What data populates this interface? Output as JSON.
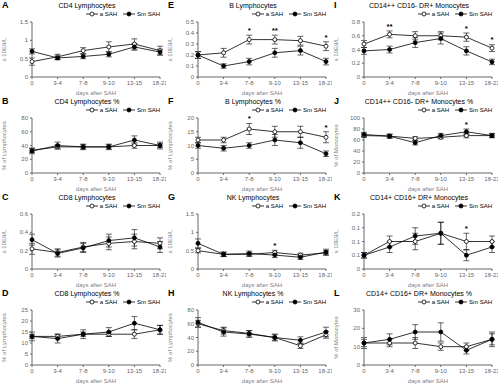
{
  "chart_data": [
    {
      "type": "line",
      "title": "CD4 Lymphocytes",
      "x_label": "days after SAH",
      "y_label": "x 10E9/L",
      "categories": [
        "0",
        "3-4",
        "7-8",
        "9-10",
        "13-15",
        "18-21"
      ],
      "ylim": [
        0,
        1.5
      ],
      "yticks": [
        0,
        0.5,
        1,
        1.5
      ],
      "legend": "upper right",
      "grid": false,
      "annotations": [
        {
          "text": "A"
        }
      ],
      "series": [
        {
          "name": "a SAH",
          "color": "#000000",
          "marker": "open_circle",
          "values": [
            0.42,
            0.55,
            0.72,
            0.82,
            0.9,
            0.72
          ],
          "errors": [
            0.1,
            0.07,
            0.08,
            0.14,
            0.14,
            0.12
          ]
        },
        {
          "name": "Sm SAH",
          "color": "#000000",
          "marker": "circle",
          "values": [
            0.7,
            0.52,
            0.56,
            0.62,
            0.82,
            0.68
          ],
          "errors": [
            0.07,
            0.05,
            0.06,
            0.07,
            0.09,
            0.08
          ]
        }
      ]
    },
    {
      "type": "line",
      "title": "CD4 Lymphocytes %",
      "x_label": "days after SAH",
      "y_label": "% of Lymphocytes",
      "categories": [
        "0",
        "3-4",
        "7-8",
        "9-10",
        "13-15",
        "18-21"
      ],
      "ylim": [
        0,
        80
      ],
      "yticks": [
        0,
        20,
        40,
        60,
        80
      ],
      "legend": "upper right",
      "grid": false,
      "annotations": [
        {
          "text": "B"
        }
      ],
      "series": [
        {
          "name": "a SAH",
          "color": "#000000",
          "marker": "open_circle",
          "values": [
            33,
            38,
            38,
            38,
            40,
            40
          ],
          "errors": [
            3,
            3,
            3,
            3,
            4,
            3
          ]
        },
        {
          "name": "Sm SAH",
          "color": "#000000",
          "marker": "circle",
          "values": [
            32,
            40,
            38,
            38,
            48,
            40
          ],
          "errors": [
            4,
            5,
            4,
            4,
            6,
            5
          ]
        }
      ]
    },
    {
      "type": "line",
      "title": "CD8 Lymphocytes",
      "x_label": "days after SAH",
      "y_label": "x 10E9/L",
      "categories": [
        "0",
        "3-4",
        "7-8",
        "9-10",
        "13-15",
        "18-21"
      ],
      "ylim": [
        0,
        0.6
      ],
      "yticks": [
        0,
        0.2,
        0.4,
        0.6
      ],
      "legend": "upper right",
      "grid": false,
      "annotations": [
        {
          "text": "C"
        }
      ],
      "series": [
        {
          "name": "a SAH",
          "color": "#000000",
          "marker": "open_circle",
          "values": [
            0.22,
            0.18,
            0.24,
            0.28,
            0.3,
            0.28
          ],
          "errors": [
            0.06,
            0.04,
            0.05,
            0.07,
            0.08,
            0.06
          ]
        },
        {
          "name": "Sm SAH",
          "color": "#000000",
          "marker": "circle",
          "values": [
            0.32,
            0.17,
            0.23,
            0.31,
            0.34,
            0.24
          ],
          "errors": [
            0.06,
            0.04,
            0.05,
            0.07,
            0.09,
            0.06
          ]
        }
      ]
    },
    {
      "type": "line",
      "title": "CD8 Lymphocytes %",
      "x_label": "days after SAH",
      "y_label": "% of Lymphocytes",
      "categories": [
        "0",
        "3-4",
        "7-8",
        "9-10",
        "13-15",
        "18-21"
      ],
      "ylim": [
        0,
        25
      ],
      "yticks": [
        0,
        5,
        10,
        15,
        20,
        25
      ],
      "legend": "upper right",
      "grid": false,
      "annotations": [
        {
          "text": "D"
        }
      ],
      "series": [
        {
          "name": "a SAH",
          "color": "#000000",
          "marker": "open_circle",
          "values": [
            13,
            13,
            14,
            14,
            14,
            16
          ],
          "errors": [
            1,
            1,
            1,
            1,
            2,
            2
          ]
        },
        {
          "name": "Sm SAH",
          "color": "#000000",
          "marker": "circle",
          "values": [
            13,
            12,
            14,
            15,
            19,
            16
          ],
          "errors": [
            2,
            2,
            2,
            2,
            3,
            2
          ]
        }
      ]
    },
    {
      "type": "line",
      "title": "B Lymphocytes",
      "x_label": "days after SAH",
      "y_label": "x 10E9/L",
      "categories": [
        "0",
        "3-4",
        "7-8",
        "9-10",
        "13-15",
        "18-21"
      ],
      "ylim": [
        0,
        0.5
      ],
      "yticks": [
        0,
        0.1,
        0.2,
        0.3,
        0.4,
        0.5
      ],
      "legend": "upper right",
      "grid": false,
      "annotations": [
        {
          "text": "E"
        },
        {
          "x": "7-8",
          "text": "*"
        },
        {
          "x": "9-10",
          "text": "**"
        },
        {
          "x": "18-21",
          "text": "*"
        }
      ],
      "series": [
        {
          "name": "a SAH",
          "color": "#000000",
          "marker": "open_circle",
          "values": [
            0.2,
            0.22,
            0.34,
            0.34,
            0.33,
            0.28
          ],
          "errors": [
            0.03,
            0.04,
            0.04,
            0.04,
            0.04,
            0.04
          ]
        },
        {
          "name": "Sm SAH",
          "color": "#000000",
          "marker": "circle",
          "values": [
            0.2,
            0.1,
            0.14,
            0.22,
            0.24,
            0.14
          ],
          "errors": [
            0.03,
            0.02,
            0.03,
            0.04,
            0.04,
            0.03
          ]
        }
      ]
    },
    {
      "type": "line",
      "title": "B Lymphocytes %",
      "x_label": "days after SAH",
      "y_label": "% of Lymphocytes",
      "categories": [
        "0",
        "3-4",
        "7-8",
        "9-10",
        "13-15",
        "18-21"
      ],
      "ylim": [
        0,
        20
      ],
      "yticks": [
        0,
        5,
        10,
        15,
        20
      ],
      "legend": "upper right",
      "grid": false,
      "annotations": [
        {
          "text": "F"
        },
        {
          "x": "7-8",
          "text": "*"
        },
        {
          "x": "18-21",
          "text": "*"
        }
      ],
      "series": [
        {
          "name": "a SAH",
          "color": "#000000",
          "marker": "open_circle",
          "values": [
            12,
            12,
            16,
            15,
            15,
            13
          ],
          "errors": [
            1,
            1,
            2,
            2,
            2,
            2
          ]
        },
        {
          "name": "Sm SAH",
          "color": "#000000",
          "marker": "circle",
          "values": [
            10,
            9,
            10,
            12,
            11,
            7
          ],
          "errors": [
            1,
            1,
            1,
            2,
            2,
            1
          ]
        }
      ]
    },
    {
      "type": "line",
      "title": "NK Lymphocytes",
      "x_label": "days after SAH",
      "y_label": "x 10E9/L",
      "categories": [
        "0",
        "3-4",
        "7-8",
        "9-10",
        "13-15",
        "18-21"
      ],
      "ylim": [
        0,
        1.5
      ],
      "yticks": [
        0,
        0.5,
        1,
        1.5
      ],
      "legend": "upper right",
      "grid": false,
      "annotations": [
        {
          "text": "G"
        },
        {
          "x": "9-10",
          "text": "*"
        }
      ],
      "series": [
        {
          "name": "a SAH",
          "color": "#000000",
          "marker": "open_circle",
          "values": [
            0.5,
            0.4,
            0.4,
            0.45,
            0.38,
            0.44
          ],
          "errors": [
            0.06,
            0.06,
            0.05,
            0.06,
            0.05,
            0.06
          ]
        },
        {
          "name": "Sm SAH",
          "color": "#000000",
          "marker": "circle",
          "values": [
            0.7,
            0.4,
            0.42,
            0.38,
            0.32,
            0.46
          ],
          "errors": [
            0.12,
            0.06,
            0.07,
            0.07,
            0.06,
            0.08
          ]
        }
      ]
    },
    {
      "type": "line",
      "title": "NK Lymphocytes %",
      "x_label": "days after SAH",
      "y_label": "% of Lymphocytes",
      "categories": [
        "0",
        "3-4",
        "7-8",
        "9-10",
        "13-15",
        "18-21"
      ],
      "ylim": [
        0,
        80
      ],
      "yticks": [
        0,
        20,
        40,
        60,
        80
      ],
      "legend": "upper right",
      "grid": false,
      "annotations": [
        {
          "text": "H"
        }
      ],
      "series": [
        {
          "name": "a SAH",
          "color": "#000000",
          "marker": "open_circle",
          "values": [
            60,
            50,
            46,
            40,
            28,
            44
          ],
          "errors": [
            5,
            5,
            4,
            4,
            4,
            5
          ]
        },
        {
          "name": "Sm SAH",
          "color": "#000000",
          "marker": "circle",
          "values": [
            62,
            48,
            45,
            40,
            36,
            48
          ],
          "errors": [
            7,
            6,
            5,
            5,
            5,
            7
          ]
        }
      ]
    },
    {
      "type": "line",
      "title": "CD14++ CD16- DR+ Monocytes",
      "x_label": "days after SAH",
      "y_label": "x 10E9/L",
      "categories": [
        "0",
        "3-4",
        "7-8",
        "9-10",
        "13-15",
        "18-21"
      ],
      "ylim": [
        0,
        0.8
      ],
      "yticks": [
        0,
        0.2,
        0.4,
        0.6,
        0.8
      ],
      "legend": "upper right",
      "grid": false,
      "annotations": [
        {
          "text": "I"
        },
        {
          "x": "3-4",
          "text": "**"
        },
        {
          "x": "13-15",
          "text": "*"
        },
        {
          "x": "18-21",
          "text": "*"
        }
      ],
      "series": [
        {
          "name": "a SAH",
          "color": "#000000",
          "marker": "open_circle",
          "values": [
            0.48,
            0.62,
            0.6,
            0.6,
            0.58,
            0.42
          ],
          "errors": [
            0.05,
            0.05,
            0.06,
            0.06,
            0.06,
            0.05
          ]
        },
        {
          "name": "Sm SAH",
          "color": "#000000",
          "marker": "circle",
          "values": [
            0.38,
            0.4,
            0.5,
            0.56,
            0.38,
            0.22
          ],
          "errors": [
            0.05,
            0.05,
            0.07,
            0.08,
            0.06,
            0.04
          ]
        }
      ]
    },
    {
      "type": "line",
      "title": "CD14++ CD16- DR+ Monocytes %",
      "x_label": "days after SAH",
      "y_label": "% of Monocytes",
      "categories": [
        "0",
        "3-4",
        "7-8",
        "9-10",
        "13-15",
        "18-21"
      ],
      "ylim": [
        0,
        100
      ],
      "yticks": [
        0,
        20,
        40,
        60,
        80,
        100
      ],
      "legend": "upper right",
      "grid": false,
      "annotations": [
        {
          "text": "J"
        },
        {
          "x": "13-15",
          "text": "*"
        }
      ],
      "series": [
        {
          "name": "a SAH",
          "color": "#000000",
          "marker": "open_circle",
          "values": [
            68,
            67,
            63,
            65,
            68,
            68
          ],
          "errors": [
            3,
            3,
            3,
            3,
            4,
            3
          ]
        },
        {
          "name": "Sm SAH",
          "color": "#000000",
          "marker": "circle",
          "values": [
            70,
            67,
            55,
            68,
            75,
            68
          ],
          "errors": [
            4,
            4,
            4,
            4,
            5,
            4
          ]
        }
      ]
    },
    {
      "type": "line",
      "title": "CD14+ CD16+ DR+ Monocytes",
      "x_label": "days after SAH",
      "y_label": "x 10E9/L",
      "categories": [
        "0",
        "3-4",
        "7-8",
        "9-10",
        "13-15",
        "18-21"
      ],
      "ylim": [
        0,
        0.2
      ],
      "yticks": [
        0,
        {
          "value": 0.05,
          "label": "0.1"
        },
        0.1,
        {
          "value": 0.15,
          "label": "0.1"
        },
        0.2
      ],
      "legend": "upper right",
      "grid": false,
      "annotations": [
        {
          "text": "K"
        },
        {
          "x": "13-15",
          "text": "*"
        }
      ],
      "series": [
        {
          "name": "a SAH",
          "color": "#000000",
          "marker": "open_circle",
          "values": [
            0.05,
            0.1,
            0.1,
            0.13,
            0.1,
            0.1
          ],
          "errors": [
            0.01,
            0.02,
            0.03,
            0.04,
            0.03,
            0.02
          ]
        },
        {
          "name": "Sm SAH",
          "color": "#000000",
          "marker": "circle",
          "values": [
            0.05,
            0.08,
            0.12,
            0.13,
            0.05,
            0.08
          ],
          "errors": [
            0.01,
            0.02,
            0.03,
            0.04,
            0.02,
            0.02
          ]
        }
      ]
    },
    {
      "type": "line",
      "title": "CD14+ CD16+ DR+ Monocytes %",
      "x_label": "days after SAH",
      "y_label": "% of Monocytes",
      "categories": [
        "0",
        "3-4",
        "7-8",
        "9-10",
        "13-15",
        "18-21"
      ],
      "ylim": [
        0,
        30
      ],
      "yticks": [
        0,
        10,
        20,
        30
      ],
      "legend": "upper right",
      "grid": false,
      "annotations": [
        {
          "text": "L"
        }
      ],
      "series": [
        {
          "name": "a SAH",
          "color": "#000000",
          "marker": "open_circle",
          "values": [
            12,
            12,
            12,
            10,
            10,
            14
          ],
          "errors": [
            2,
            2,
            3,
            2,
            2,
            3
          ]
        },
        {
          "name": "Sm SAH",
          "color": "#000000",
          "marker": "circle",
          "values": [
            12,
            14,
            18,
            18,
            8,
            14
          ],
          "errors": [
            3,
            3,
            4,
            5,
            2,
            4
          ]
        }
      ]
    }
  ]
}
